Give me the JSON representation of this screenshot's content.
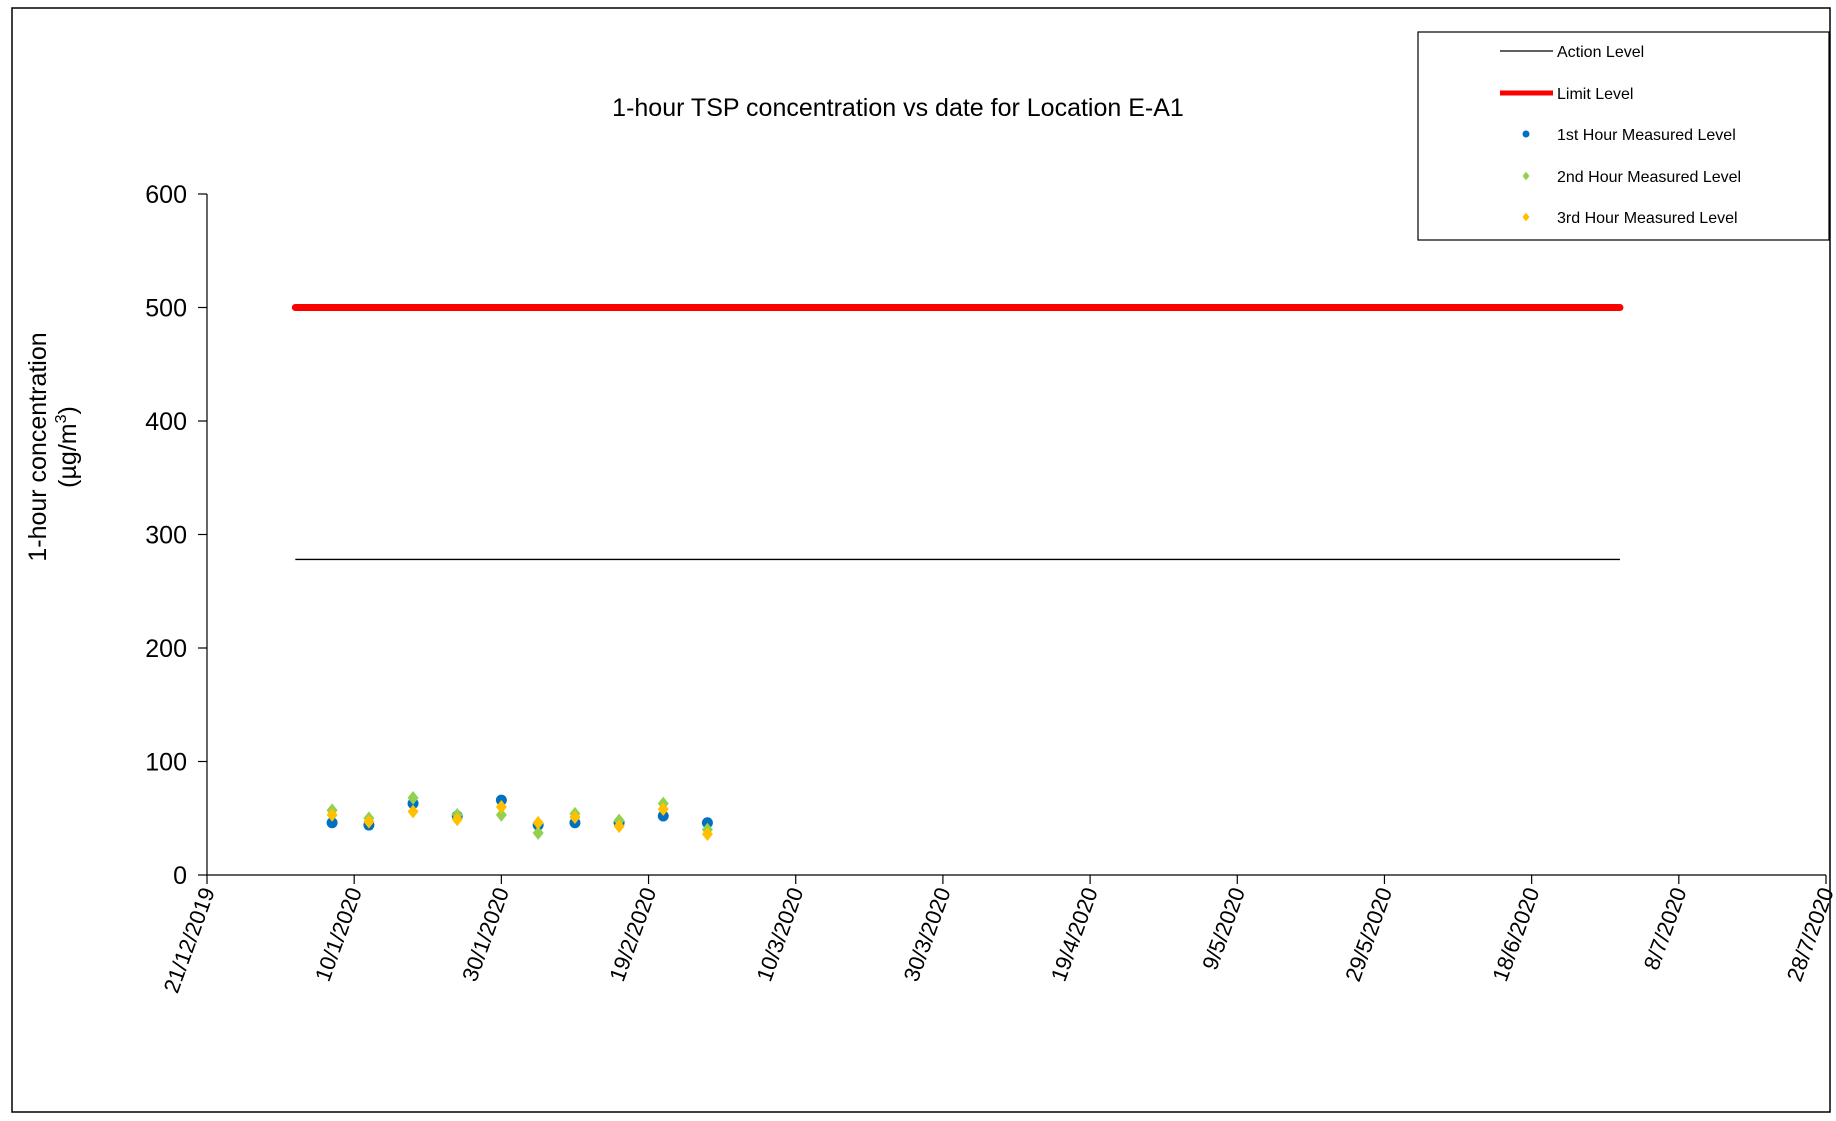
{
  "chart_data": {
    "type": "scatter",
    "title": "1-hour TSP concentration vs date for Location E-A1",
    "xlabel": "",
    "ylabel": "1-hour concentration",
    "ylabel_unit": "(µg/m3)",
    "ylim": [
      0,
      600
    ],
    "yticks": [
      0,
      100,
      200,
      300,
      400,
      500,
      600
    ],
    "xlim": [
      "2019-12-21",
      "2020-07-28"
    ],
    "xtick_labels": [
      "21/12/2019",
      "10/1/2020",
      "30/1/2020",
      "19/2/2020",
      "10/3/2020",
      "30/3/2020",
      "19/4/2020",
      "9/5/2020",
      "29/5/2020",
      "18/6/2020",
      "8/7/2020",
      "28/7/2020"
    ],
    "grid": false,
    "legend_position": "top-right",
    "reference_lines": [
      {
        "name": "Action Level",
        "value": 278,
        "x": [
          "2020-01-02",
          "2020-06-30"
        ],
        "color": "#000000",
        "style": "thin"
      },
      {
        "name": "Limit Level",
        "value": 500,
        "x": [
          "2020-01-02",
          "2020-06-30"
        ],
        "color": "#ff0000",
        "style": "thick"
      }
    ],
    "x": [
      "2020-01-07",
      "2020-01-12",
      "2020-01-18",
      "2020-01-24",
      "2020-01-30",
      "2020-02-04",
      "2020-02-09",
      "2020-02-15",
      "2020-02-21",
      "2020-02-27"
    ],
    "series": [
      {
        "name": "1st Hour Measured Level",
        "color": "#0070c0",
        "marker": "circle",
        "values": [
          46,
          44,
          63,
          52,
          66,
          44,
          46,
          46,
          52,
          46
        ]
      },
      {
        "name": "2nd Hour Measured Level",
        "color": "#92d050",
        "marker": "diamond",
        "values": [
          57,
          50,
          68,
          53,
          53,
          37,
          54,
          48,
          63,
          40
        ]
      },
      {
        "name": "3rd Hour Measured Level",
        "color": "#ffc000",
        "marker": "diamond",
        "values": [
          53,
          47,
          56,
          49,
          60,
          46,
          51,
          43,
          58,
          36
        ]
      }
    ]
  }
}
